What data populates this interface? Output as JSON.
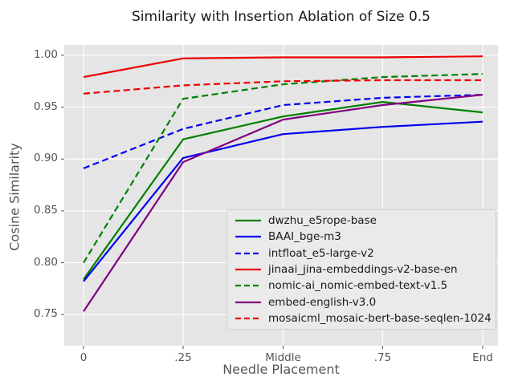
{
  "chart_data": {
    "type": "line",
    "title": "Similarity with Insertion Ablation of Size 0.5",
    "xlabel": "Needle Placement",
    "ylabel": "Cosine Similarity",
    "categories": [
      "0",
      ".25",
      "Middle",
      ".75",
      "End"
    ],
    "yticks": [
      0.75,
      0.8,
      0.85,
      0.9,
      0.95,
      1.0
    ],
    "ytick_labels": [
      "0.75",
      "0.80",
      "0.85",
      "0.90",
      "0.95",
      "1.00"
    ],
    "ylim": [
      0.72,
      1.01
    ],
    "grid": true,
    "legend_position": "lower right",
    "series": [
      {
        "name": "dwzhu_e5rope-base",
        "color": "#008000",
        "dash": "solid",
        "values": [
          0.784,
          0.919,
          0.941,
          0.955,
          0.945
        ]
      },
      {
        "name": "BAAI_bge-m3",
        "color": "#0000ee",
        "dash": "solid",
        "values": [
          0.782,
          0.901,
          0.924,
          0.931,
          0.936
        ]
      },
      {
        "name": "intfloat_e5-large-v2",
        "color": "#0000ee",
        "dash": "dashed",
        "values": [
          0.891,
          0.929,
          0.952,
          0.959,
          0.962
        ]
      },
      {
        "name": "jinaai_jina-embeddings-v2-base-en",
        "color": "#ee0000",
        "dash": "solid",
        "values": [
          0.979,
          0.997,
          0.998,
          0.998,
          0.999
        ]
      },
      {
        "name": "nomic-ai_nomic-embed-text-v1.5",
        "color": "#008000",
        "dash": "dashed",
        "values": [
          0.8,
          0.958,
          0.972,
          0.979,
          0.982
        ]
      },
      {
        "name": "embed-english-v3.0",
        "color": "#800080",
        "dash": "solid",
        "values": [
          0.753,
          0.897,
          0.938,
          0.952,
          0.962
        ]
      },
      {
        "name": "mosaicml_mosaic-bert-base-seqlen-1024",
        "color": "#ee0000",
        "dash": "dashed",
        "values": [
          0.963,
          0.971,
          0.975,
          0.976,
          0.976
        ]
      }
    ],
    "colors": {
      "plot_background": "#e5e5e5",
      "gridline": "#ffffff",
      "tick_text": "#555555",
      "title_text": "#1a1a1a"
    }
  }
}
